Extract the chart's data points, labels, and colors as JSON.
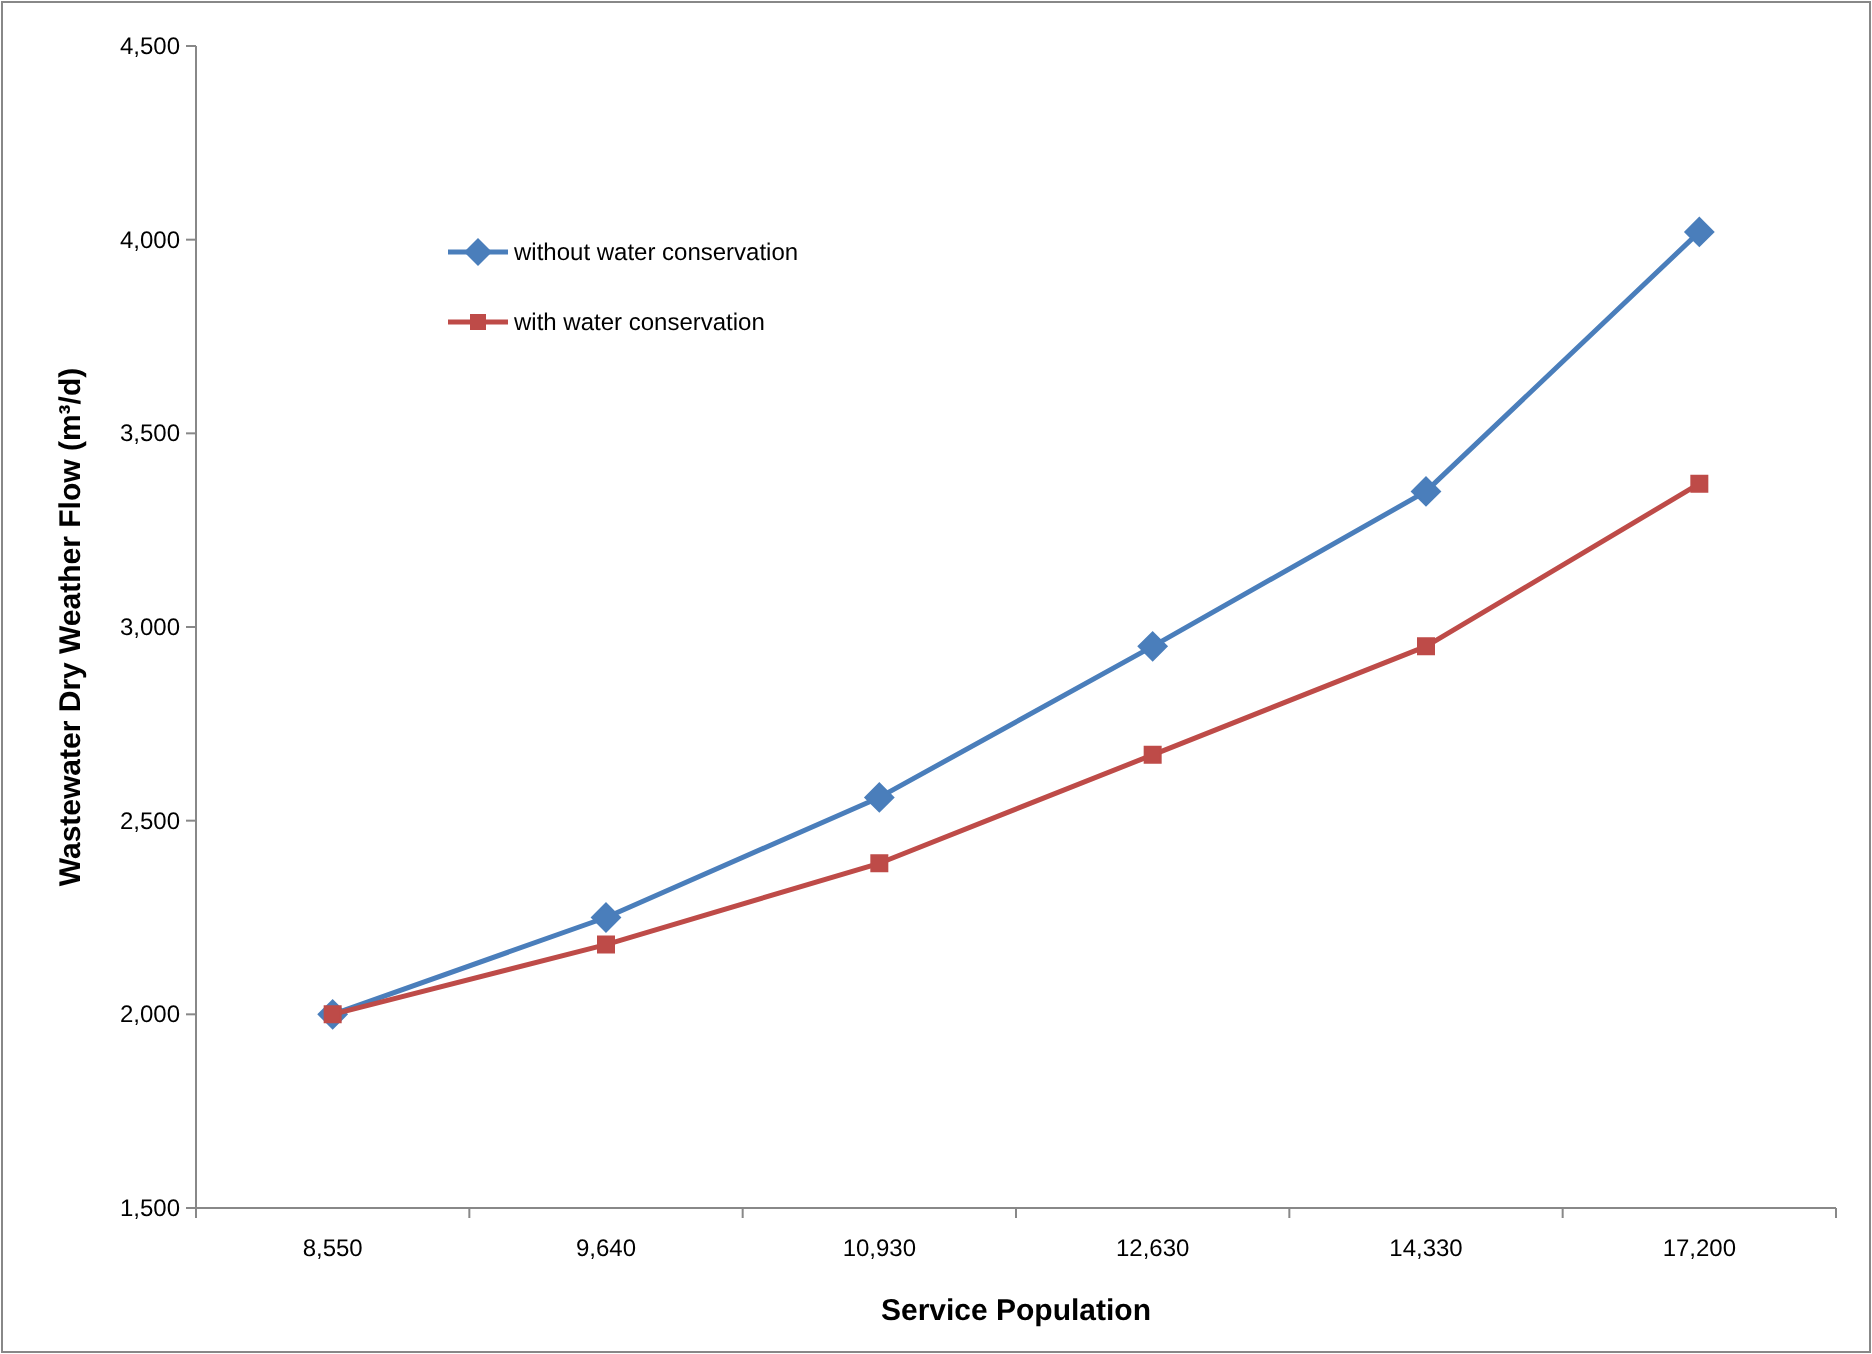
{
  "chart_data": {
    "type": "line",
    "xlabel": "Service Population",
    "ylabel": "Wastewater Dry Weather Flow (m³/d)",
    "categories": [
      "8,550",
      "9,640",
      "10,930",
      "12,630",
      "14,330",
      "17,200"
    ],
    "series": [
      {
        "name": "without water conservation",
        "color": "#4a7ebb",
        "marker": "diamond",
        "values": [
          2000,
          2250,
          2560,
          2950,
          3350,
          4020
        ]
      },
      {
        "name": "with water conservation",
        "color": "#be4b48",
        "marker": "square",
        "values": [
          2000,
          2180,
          2390,
          2670,
          2950,
          3370
        ]
      }
    ],
    "ylim": [
      1500,
      4500
    ],
    "yticks": [
      {
        "value": 1500,
        "label": "1,500"
      },
      {
        "value": 2000,
        "label": "2,000"
      },
      {
        "value": 2500,
        "label": "2,500"
      },
      {
        "value": 3000,
        "label": "3,000"
      },
      {
        "value": 3500,
        "label": "3,500"
      },
      {
        "value": 4000,
        "label": "4,000"
      },
      {
        "value": 4500,
        "label": "4,500"
      }
    ],
    "grid": false,
    "legend": "top left",
    "line_style": "solid"
  }
}
